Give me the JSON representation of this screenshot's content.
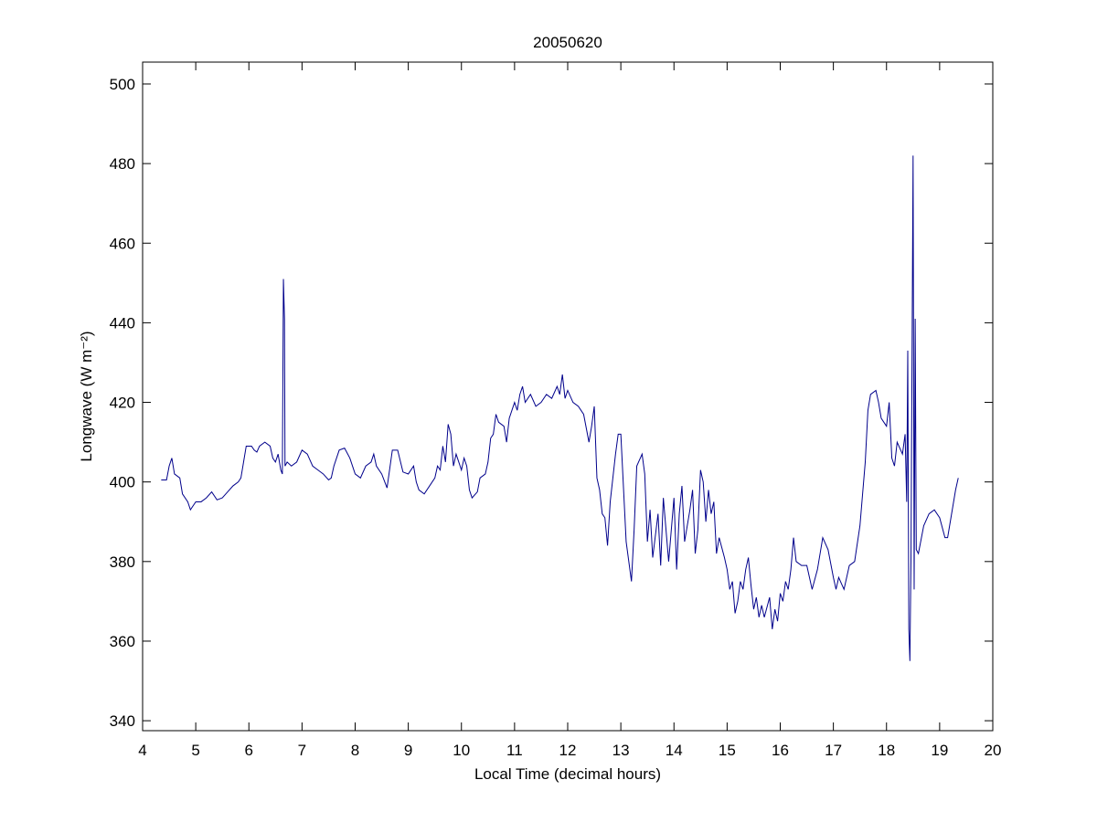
{
  "chart_data": {
    "type": "line",
    "title": "20050620",
    "xlabel": "Local Time (decimal hours)",
    "ylabel": "Longwave (W m⁻²)",
    "color": "#00008b",
    "xlim": [
      4,
      20
    ],
    "ylim": [
      337.5,
      505.5
    ],
    "xticks": [
      4,
      5,
      6,
      7,
      8,
      9,
      10,
      11,
      12,
      13,
      14,
      15,
      16,
      17,
      18,
      19,
      20
    ],
    "yticks": [
      340,
      360,
      380,
      400,
      420,
      440,
      460,
      480,
      500
    ],
    "grid": false,
    "x": [
      4.35,
      4.45,
      4.5,
      4.55,
      4.6,
      4.7,
      4.75,
      4.85,
      4.9,
      5.0,
      5.1,
      5.2,
      5.3,
      5.4,
      5.5,
      5.6,
      5.7,
      5.8,
      5.85,
      5.9,
      5.95,
      6.05,
      6.1,
      6.15,
      6.2,
      6.3,
      6.4,
      6.45,
      6.5,
      6.55,
      6.6,
      6.63,
      6.65,
      6.67,
      6.68,
      6.72,
      6.8,
      6.9,
      7.0,
      7.1,
      7.2,
      7.3,
      7.4,
      7.5,
      7.55,
      7.6,
      7.7,
      7.8,
      7.9,
      8.0,
      8.1,
      8.2,
      8.3,
      8.35,
      8.4,
      8.5,
      8.6,
      8.7,
      8.8,
      8.9,
      9.0,
      9.1,
      9.15,
      9.2,
      9.3,
      9.4,
      9.5,
      9.55,
      9.6,
      9.65,
      9.7,
      9.75,
      9.8,
      9.85,
      9.9,
      10.0,
      10.05,
      10.1,
      10.15,
      10.2,
      10.3,
      10.35,
      10.45,
      10.5,
      10.55,
      10.6,
      10.65,
      10.7,
      10.8,
      10.85,
      10.9,
      11.0,
      11.05,
      11.1,
      11.15,
      11.2,
      11.3,
      11.4,
      11.5,
      11.6,
      11.7,
      11.8,
      11.85,
      11.9,
      11.95,
      12.0,
      12.1,
      12.2,
      12.3,
      12.4,
      12.45,
      12.5,
      12.55,
      12.6,
      12.65,
      12.7,
      12.75,
      12.8,
      12.9,
      12.95,
      13.0,
      13.1,
      13.15,
      13.2,
      13.25,
      13.3,
      13.4,
      13.45,
      13.5,
      13.55,
      13.6,
      13.7,
      13.75,
      13.8,
      13.9,
      14.0,
      14.05,
      14.1,
      14.15,
      14.2,
      14.3,
      14.35,
      14.4,
      14.45,
      14.5,
      14.55,
      14.6,
      14.65,
      14.7,
      14.75,
      14.8,
      14.85,
      14.95,
      15.0,
      15.05,
      15.1,
      15.15,
      15.2,
      15.25,
      15.3,
      15.35,
      15.4,
      15.45,
      15.5,
      15.55,
      15.6,
      15.65,
      15.7,
      15.8,
      15.85,
      15.9,
      15.95,
      16.0,
      16.05,
      16.1,
      16.15,
      16.2,
      16.25,
      16.3,
      16.4,
      16.5,
      16.6,
      16.7,
      16.8,
      16.9,
      17.0,
      17.05,
      17.1,
      17.2,
      17.3,
      17.4,
      17.5,
      17.6,
      17.65,
      17.7,
      17.8,
      17.85,
      17.9,
      18.0,
      18.05,
      18.1,
      18.15,
      18.2,
      18.3,
      18.35,
      18.38,
      18.4,
      18.42,
      18.44,
      18.46,
      18.48,
      18.5,
      18.52,
      18.54,
      18.56,
      18.6,
      18.7,
      18.8,
      18.9,
      19.0,
      19.1,
      19.15,
      19.2,
      19.3,
      19.35
    ],
    "values": [
      400.5,
      400.5,
      404,
      406,
      402,
      401,
      397,
      395,
      393,
      395,
      395,
      396,
      397.5,
      395.5,
      396,
      397.5,
      399,
      400,
      401,
      405,
      409,
      409,
      408,
      407.5,
      409,
      410,
      409,
      406,
      405,
      407,
      403,
      402,
      451,
      441,
      404,
      405,
      404,
      405,
      408,
      407,
      404,
      403,
      402,
      400.5,
      401,
      404,
      408,
      408.5,
      406,
      402,
      401,
      404,
      405,
      407,
      404,
      402,
      398.5,
      408,
      408,
      402.5,
      402,
      404,
      400,
      398,
      397,
      399,
      401,
      404,
      403,
      409,
      405,
      414.5,
      412,
      404,
      407,
      403,
      406,
      404,
      398,
      396,
      397.5,
      401,
      402,
      405,
      411,
      412,
      417,
      415,
      414,
      410,
      416,
      420,
      418,
      422,
      424,
      420,
      422,
      419,
      420,
      422,
      421,
      424,
      422,
      427,
      421,
      423,
      420,
      419,
      417,
      410,
      414,
      419,
      401,
      398,
      392,
      391,
      384,
      395,
      407,
      412,
      412,
      385,
      380,
      375,
      388,
      404,
      407,
      402,
      385,
      393,
      381,
      392,
      379,
      396,
      380,
      396,
      378,
      392,
      399,
      385,
      393,
      398,
      382,
      388,
      403,
      400,
      390,
      398,
      392,
      395,
      382,
      386,
      381,
      378,
      373,
      375,
      367,
      370,
      375,
      373,
      378,
      381,
      374,
      368,
      371,
      366,
      369,
      366,
      371,
      363,
      368,
      365,
      372,
      370,
      375,
      373,
      378,
      386,
      380,
      379,
      379,
      373,
      378,
      386,
      383,
      376,
      373,
      376,
      373,
      379,
      380,
      389,
      405,
      418,
      422,
      423,
      420,
      416,
      414,
      420,
      406,
      404,
      410,
      407,
      412,
      395,
      433,
      363,
      355,
      380,
      430,
      482,
      373,
      441,
      383,
      382,
      389,
      392,
      393,
      391,
      386,
      386,
      390,
      398,
      401
    ]
  }
}
